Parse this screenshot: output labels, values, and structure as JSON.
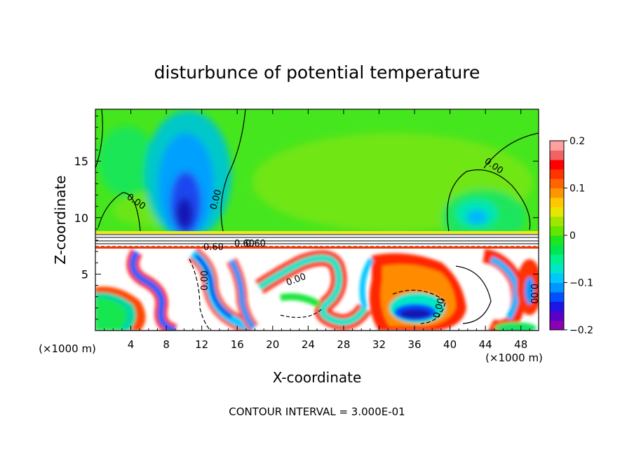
{
  "chart_data": {
    "type": "heatmap",
    "title": "disturbunce of potential temperature",
    "xlabel": "X-coordinate",
    "ylabel": "Z-coordinate",
    "x_unit_left": "(×1000 m)",
    "x_unit_right": "(×1000 m)",
    "xlim": [
      0,
      50
    ],
    "ylim": [
      0,
      19.6
    ],
    "xticks": [
      4,
      8,
      12,
      16,
      20,
      24,
      28,
      32,
      36,
      40,
      44,
      48
    ],
    "yticks": [
      5,
      10,
      15
    ],
    "colorbar": {
      "range": [
        -0.2,
        0.2
      ],
      "tick_values": [
        0.2,
        0.1,
        0,
        -0.1,
        -0.2
      ],
      "tick_labels": [
        "0.2",
        "0.1",
        "0",
        "−0.1",
        "−0.2"
      ],
      "colors": [
        "#8c00b4",
        "#5a00c8",
        "#1e14e6",
        "#0050ff",
        "#0096ff",
        "#00c8ff",
        "#00e6c8",
        "#00f08c",
        "#00e650",
        "#1ee61e",
        "#64e600",
        "#a0e600",
        "#e6e600",
        "#ffc800",
        "#ff9600",
        "#ff6400",
        "#ff3200",
        "#ff0000",
        "#f06464",
        "#ffa0a0"
      ]
    },
    "contour_labels": [
      "0.00",
      "0.00",
      "0.00",
      "0.00",
      "0.00",
      "0.00",
      "0.00",
      "0.60",
      "0.60",
      "0.60"
    ],
    "contour_interval_text": "CONTOUR INTERVAL = 3.000E-01"
  }
}
